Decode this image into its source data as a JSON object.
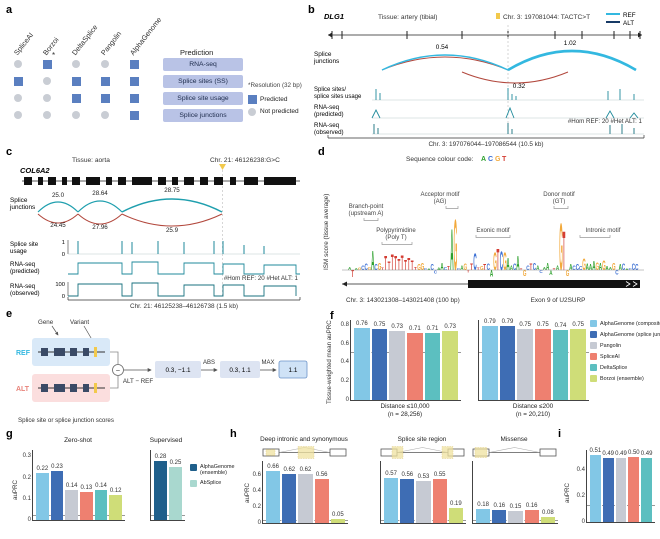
{
  "palette": {
    "ag_composite": "#82c7e6",
    "ag_junction": "#3e6db4",
    "ag_ensemble": "#1f5f8b",
    "pangolin": "#c6cad3",
    "spliceai": "#ee8070",
    "deltasplice": "#5cbfc0",
    "borzoi": "#cfdd78",
    "absplice": "#a9d8cf",
    "ref": "#33b8e0",
    "alt": "#173a66",
    "jup": "#1f9fae",
    "jdn": "#b2483d",
    "track": "#1f8a9b",
    "variant": "#f2c94c",
    "predicted": "#5a7fc0",
    "not_predicted": "#c9cdd4",
    "label_box": "#b9c3e6",
    "base_A": "#2ca02c",
    "base_C": "#3b6fd4",
    "base_G": "#f2a93b",
    "base_T": "#d43d33"
  },
  "panel_a": {
    "letter": "a",
    "columns": [
      "SpliceAI",
      "Borzoi",
      "DeltaSplice",
      "Pangolin",
      "AlphaGenome"
    ],
    "rows": [
      {
        "label": "RNA-seq",
        "cells": [
          "no",
          "yes*",
          "no",
          "no",
          "yes"
        ]
      },
      {
        "label": "Splice sites (SS)",
        "cells": [
          "yes",
          "no",
          "yes",
          "yes",
          "yes"
        ]
      },
      {
        "label": "Splice site usage",
        "cells": [
          "no",
          "no",
          "yes",
          "yes",
          "yes"
        ]
      },
      {
        "label": "Splice junctions",
        "cells": [
          "no",
          "no",
          "no",
          "no",
          "yes"
        ]
      }
    ],
    "prediction_header": "Prediction",
    "note": "*Resolution (32 bp)",
    "legend_predicted": "Predicted",
    "legend_not_predicted": "Not predicted"
  },
  "panel_b": {
    "letter": "b",
    "gene": "DLG1",
    "tissue": "Tissue: artery (tibial)",
    "variant": "Chr. 3: 197081044: TACTC>T",
    "ref": "REF",
    "alt": "ALT",
    "junctions_label_1": "Splice",
    "junctions_label_2": "junctions",
    "jn_left": "0.54",
    "jn_right": "1.02",
    "jn_below": "0.32",
    "track1_1": "Splice sites/",
    "track1_2": "splice sites usage",
    "track2_1": "RNA-seq",
    "track2_2": "(predicted)",
    "genotype": "#Hom REF: 20 #Het ALT: 1",
    "track3_1": "RNA-seq",
    "track3_2": "(observed)",
    "xaxis": "Chr. 3: 197076044–197086544 (10.5 kb)"
  },
  "panel_c": {
    "letter": "c",
    "gene": "COL6A2",
    "tissue": "Tissue: aorta",
    "variant": "Chr. 21: 46126238:G>C",
    "junctions_label_1": "Splice",
    "junctions_label_2": "junctions",
    "jn_up": [
      "25.0",
      "28.64",
      "28.75"
    ],
    "jn_down": [
      "24.45",
      "27.96",
      "25.9"
    ],
    "usage_label_1": "Splice site",
    "usage_label_2": "usage",
    "usage_y1": "1",
    "usage_y0": "0",
    "pred_label_1": "RNA-seq",
    "pred_label_2": "(predicted)",
    "genotype": "#Hom REF: 20 #Het ALT: 1",
    "obs_label_1": "RNA-seq",
    "obs_label_2": "(observed)",
    "obs_y1": "100",
    "obs_y0": "0",
    "xaxis": "Chr. 21: 46125238–46126738 (1.5 kb)"
  },
  "panel_d": {
    "letter": "d",
    "code_label": "Sequence colour code:",
    "base_a": "A",
    "base_c": "C",
    "base_g": "G",
    "base_t": "T",
    "ylabel": "ISM score (tissue average)",
    "ann_branch_1": "Branch-point",
    "ann_branch_2": "(upstream A)",
    "ann_poly_1": "Polypyrimidine",
    "ann_poly_2": "(Poly T)",
    "ann_acceptor_1": "Acceptor motif",
    "ann_acceptor_2": "(AG)",
    "ann_exonic": "Exonic motif",
    "ann_donor_1": "Donor motif",
    "ann_donor_2": "(GT)",
    "ann_intronic": "Intronic motif",
    "xaxis": "Chr. 3: 143021308–143021408 (100 bp)",
    "exon_label": "Exon 9 of U2SURP"
  },
  "panel_e": {
    "letter": "e",
    "gene_label": "Gene",
    "variant_label": "Variant",
    "ref": "REF",
    "alt": "ALT",
    "minus": "−",
    "formula": "ALT − REF",
    "box1": "0.3, −1.1",
    "abs": "ABS",
    "box2": "0.3, 1.1",
    "max": "MAX",
    "box3": "1.1",
    "caption": "Splice site or splice junction scores"
  },
  "panel_f": {
    "letter": "f",
    "legend": [
      {
        "key": "ag_composite",
        "label": "AlphaGenome (composite)"
      },
      {
        "key": "ag_junction",
        "label": "AlphaGenome (splice junction)"
      },
      {
        "key": "pangolin",
        "label": "Pangolin"
      },
      {
        "key": "spliceai",
        "label": "SpliceAI"
      },
      {
        "key": "deltasplice",
        "label": "DeltaSplice"
      },
      {
        "key": "borzoi",
        "label": "Borzoi (ensemble)"
      }
    ]
  },
  "panel_g": {
    "letter": "g",
    "legend": [
      {
        "key": "ag_ensemble",
        "label": "AlphaGenome (ensemble)"
      },
      {
        "key": "absplice",
        "label": "AbSplice"
      }
    ]
  },
  "panel_h": {
    "letter": "h"
  },
  "panel_i": {
    "letter": "i"
  },
  "chart_data": [
    {
      "id": "f-distance-10000",
      "type": "bar",
      "series": [
        "AlphaGenome (composite)",
        "AlphaGenome (splice junction)",
        "Pangolin",
        "SpliceAI",
        "DeltaSplice",
        "Borzoi (ensemble)"
      ],
      "colors": [
        "ag_composite",
        "ag_junction",
        "pangolin",
        "spliceai",
        "deltasplice",
        "borzoi"
      ],
      "values": [
        0.76,
        0.75,
        0.73,
        0.71,
        0.71,
        0.73
      ],
      "labels": [
        "0.76",
        "0.75",
        "0.73",
        "0.71",
        "0.71",
        "0.73"
      ],
      "ylim": [
        0,
        0.85
      ],
      "yticks": [
        0,
        0.2,
        0.4,
        0.6,
        0.8
      ],
      "baseline": 0.5,
      "ylabel": "Tissue-weighted mean auPRC",
      "caption_1": "Distance ≤10,000",
      "caption_2": "(n = 28,256)"
    },
    {
      "id": "f-distance-200",
      "type": "bar",
      "series": [
        "AlphaGenome (composite)",
        "AlphaGenome (splice junction)",
        "Pangolin",
        "SpliceAI",
        "DeltaSplice",
        "Borzoi (ensemble)"
      ],
      "colors": [
        "ag_composite",
        "ag_junction",
        "pangolin",
        "spliceai",
        "deltasplice",
        "borzoi"
      ],
      "values": [
        0.79,
        0.79,
        0.75,
        0.75,
        0.74,
        0.75
      ],
      "labels": [
        "0.79",
        "0.79",
        "0.75",
        "0.75",
        "0.74",
        "0.75"
      ],
      "ylim": [
        0,
        0.85
      ],
      "yticks": [],
      "baseline": 0.5,
      "caption_1": "Distance ≤200",
      "caption_2": "(n = 20,210)"
    },
    {
      "id": "g-zero-shot",
      "type": "bar",
      "title": "Zero-shot",
      "series": [
        "AlphaGenome (composite)",
        "AlphaGenome (splice junction)",
        "Pangolin",
        "SpliceAI",
        "DeltaSplice",
        "Borzoi (ensemble)"
      ],
      "colors": [
        "ag_composite",
        "ag_junction",
        "pangolin",
        "spliceai",
        "deltasplice",
        "borzoi"
      ],
      "values": [
        0.22,
        0.23,
        0.14,
        0.13,
        0.14,
        0.12
      ],
      "labels": [
        "0.22",
        "0.23",
        "0.14",
        "0.13",
        "0.14",
        "0.12"
      ],
      "ylim": [
        0,
        0.33
      ],
      "yticks": [
        0,
        0.1,
        0.2,
        0.3
      ],
      "baseline": 0.02,
      "ylabel": "auPRC"
    },
    {
      "id": "g-supervised",
      "type": "bar",
      "title": "Supervised",
      "series": [
        "AlphaGenome (ensemble)",
        "AbSplice"
      ],
      "colors": [
        "ag_ensemble",
        "absplice"
      ],
      "values": [
        0.28,
        0.25
      ],
      "labels": [
        "0.28",
        "0.25"
      ],
      "ylim": [
        0,
        0.33
      ],
      "yticks": [],
      "baseline": 0.02
    },
    {
      "id": "h-deep-intronic-synonymous",
      "type": "bar",
      "title": "Deep intronic and synonymous",
      "series": [
        "AlphaGenome (composite)",
        "AlphaGenome (splice junction)",
        "Pangolin",
        "SpliceAI",
        "Borzoi (ensemble)"
      ],
      "colors": [
        "ag_composite",
        "ag_junction",
        "pangolin",
        "spliceai",
        "borzoi"
      ],
      "values": [
        0.66,
        0.62,
        0.62,
        0.56,
        0.05
      ],
      "labels": [
        "0.66",
        "0.62",
        "0.62",
        "0.56",
        "0.05"
      ],
      "ylim": [
        0,
        0.78
      ],
      "yticks": [
        0,
        0.2,
        0.4,
        0.6
      ],
      "baseline": 0.03,
      "ylabel": "auPRC"
    },
    {
      "id": "h-splice-site-region",
      "type": "bar",
      "title": "Splice site region",
      "series": [
        "AlphaGenome (composite)",
        "AlphaGenome (splice junction)",
        "Pangolin",
        "SpliceAI",
        "Borzoi (ensemble)"
      ],
      "colors": [
        "ag_composite",
        "ag_junction",
        "pangolin",
        "spliceai",
        "borzoi"
      ],
      "values": [
        0.57,
        0.56,
        0.53,
        0.55,
        0.19
      ],
      "labels": [
        "0.57",
        "0.56",
        "0.53",
        "0.55",
        "0.19"
      ],
      "ylim": [
        0,
        0.78
      ],
      "yticks": [],
      "baseline": 0.03
    },
    {
      "id": "h-missense",
      "type": "bar",
      "title": "Missense",
      "series": [
        "AlphaGenome (composite)",
        "AlphaGenome (splice junction)",
        "Pangolin",
        "SpliceAI",
        "Borzoi (ensemble)"
      ],
      "colors": [
        "ag_composite",
        "ag_junction",
        "pangolin",
        "spliceai",
        "borzoi"
      ],
      "values": [
        0.18,
        0.16,
        0.15,
        0.16,
        0.08
      ],
      "labels": [
        "0.18",
        "0.16",
        "0.15",
        "0.16",
        "0.08"
      ],
      "ylim": [
        0,
        0.78
      ],
      "yticks": [],
      "baseline": 0.03
    },
    {
      "id": "i-benchmark",
      "type": "bar",
      "series": [
        "AlphaGenome (composite)",
        "AlphaGenome (splice junction)",
        "Pangolin",
        "SpliceAI",
        "DeltaSplice"
      ],
      "colors": [
        "ag_composite",
        "ag_junction",
        "pangolin",
        "spliceai",
        "deltasplice"
      ],
      "values": [
        0.51,
        0.49,
        0.49,
        0.5,
        0.49
      ],
      "labels": [
        "0.51",
        "0.49",
        "0.49",
        "0.50",
        "0.49"
      ],
      "ylim": [
        0,
        0.55
      ],
      "yticks": [
        0,
        0.2,
        0.4
      ],
      "baseline": 0.12,
      "ylabel": "auPRC"
    }
  ]
}
